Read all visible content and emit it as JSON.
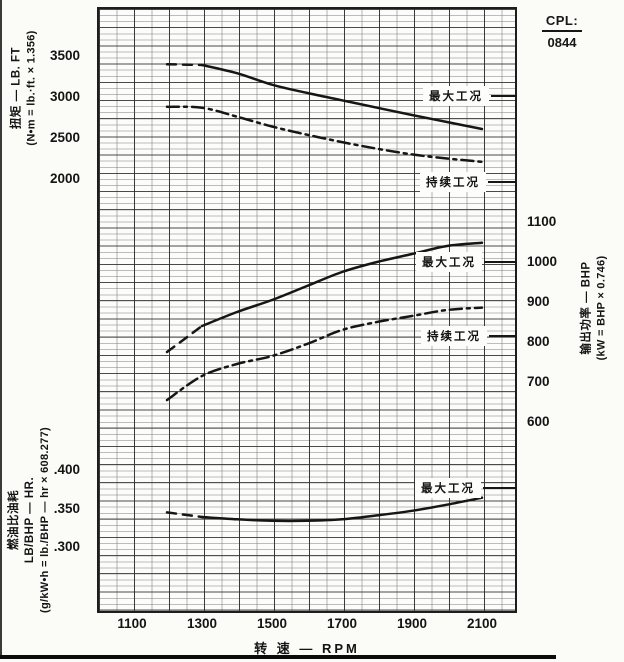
{
  "header": {
    "cpl_label": "CPL:",
    "cpl_value": "0844"
  },
  "chart_data": {
    "type": "line",
    "title": "",
    "x_axis": {
      "title": "转  速 — RPM",
      "ticks": [
        1100,
        1300,
        1500,
        1700,
        1900,
        2100
      ],
      "range": [
        1000,
        2200
      ],
      "grid": "on"
    },
    "panels": [
      {
        "id": "torque",
        "axis_side": "left",
        "axis_title_lines": [
          "扭矩 — LB. FT",
          "(N•m = lb.·ft. × 1.356)"
        ],
        "ticks": [
          "3500",
          "3000",
          "2500",
          "2000"
        ],
        "series": [
          {
            "name": "最大工况",
            "style": "solid",
            "dash_lead_until": 1300,
            "points": [
              [
                1200,
                3400
              ],
              [
                1300,
                3390
              ],
              [
                1400,
                3290
              ],
              [
                1500,
                3150
              ],
              [
                1600,
                3050
              ],
              [
                1700,
                2960
              ],
              [
                1800,
                2870
              ],
              [
                1900,
                2780
              ],
              [
                2000,
                2695
              ],
              [
                2100,
                2610
              ]
            ]
          },
          {
            "name": "持续工况",
            "style": "dashdot",
            "points": [
              [
                1200,
                2880
              ],
              [
                1300,
                2870
              ],
              [
                1400,
                2760
              ],
              [
                1500,
                2640
              ],
              [
                1600,
                2540
              ],
              [
                1700,
                2450
              ],
              [
                1800,
                2370
              ],
              [
                1900,
                2300
              ],
              [
                2000,
                2250
              ],
              [
                2100,
                2210
              ]
            ]
          }
        ]
      },
      {
        "id": "power",
        "axis_side": "right",
        "axis_title_lines": [
          "输出功率 — BHP",
          "(kW = BHP × 0.746)"
        ],
        "ticks": [
          "1100",
          "1000",
          "900",
          "800",
          "700",
          "600"
        ],
        "series": [
          {
            "name": "最大工况",
            "style": "solid",
            "dash_lead_until": 1300,
            "points": [
              [
                1200,
                775
              ],
              [
                1300,
                840
              ],
              [
                1400,
                875
              ],
              [
                1500,
                905
              ],
              [
                1600,
                940
              ],
              [
                1700,
                975
              ],
              [
                1800,
                1000
              ],
              [
                1900,
                1020
              ],
              [
                2000,
                1040
              ],
              [
                2100,
                1048
              ]
            ]
          },
          {
            "name": "持续工况",
            "style": "dashdot",
            "points": [
              [
                1200,
                655
              ],
              [
                1300,
                715
              ],
              [
                1400,
                745
              ],
              [
                1500,
                765
              ],
              [
                1600,
                795
              ],
              [
                1700,
                830
              ],
              [
                1800,
                850
              ],
              [
                1900,
                865
              ],
              [
                2000,
                880
              ],
              [
                2100,
                886
              ]
            ]
          }
        ]
      },
      {
        "id": "fuel",
        "axis_side": "left",
        "axis_title_lines": [
          "燃油比油耗",
          "LB/BHP — HR.",
          "(g/kW•h = lb./BHP — hr × 608.277)"
        ],
        "ticks": [
          ".400",
          ".350",
          ".300"
        ],
        "series": [
          {
            "name": "最大工况",
            "style": "solid",
            "dash_lead_until": 1300,
            "points": [
              [
                1200,
                0.345
              ],
              [
                1300,
                0.339
              ],
              [
                1400,
                0.336
              ],
              [
                1500,
                0.334
              ],
              [
                1600,
                0.334
              ],
              [
                1700,
                0.336
              ],
              [
                1800,
                0.341
              ],
              [
                1900,
                0.347
              ],
              [
                2000,
                0.355
              ],
              [
                2100,
                0.364
              ]
            ]
          }
        ]
      }
    ],
    "ink_color": "#161616"
  }
}
